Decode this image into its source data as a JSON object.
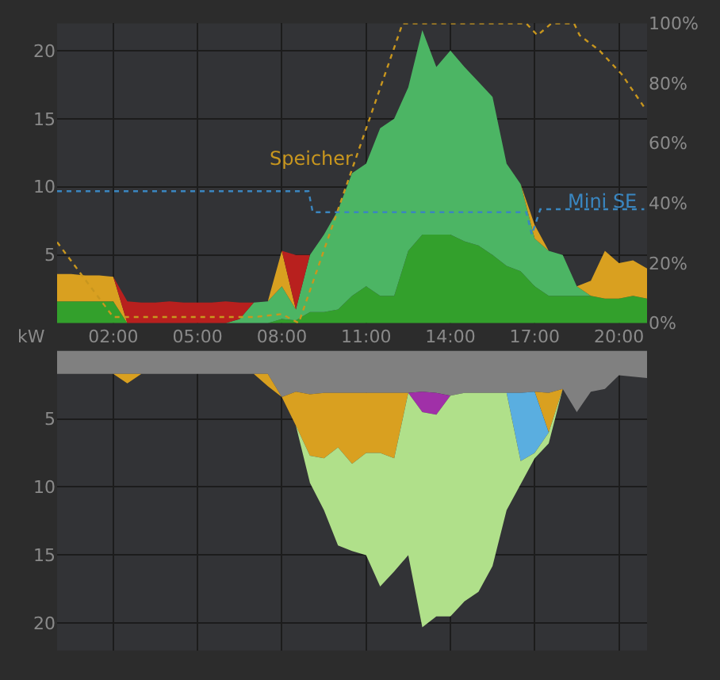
{
  "chart_data": [
    {
      "type": "area",
      "stacked": true,
      "ylabel": "kW",
      "grid": true,
      "x": [
        0,
        0.5,
        1,
        1.5,
        2,
        2.5,
        3,
        3.5,
        4,
        4.5,
        5,
        5.5,
        6,
        6.5,
        7,
        7.5,
        8,
        8.5,
        9,
        9.5,
        10,
        10.5,
        11,
        11.5,
        12,
        12.5,
        13,
        13.5,
        14,
        14.5,
        15,
        15.5,
        16,
        16.5,
        17,
        17.5,
        18,
        18.5,
        19,
        19.5,
        20,
        20.5,
        21
      ],
      "xlim": [
        0,
        21
      ],
      "xticks": [
        {
          "value": 2,
          "label": "02:00"
        },
        {
          "value": 5,
          "label": "05:00"
        },
        {
          "value": 8,
          "label": "08:00"
        },
        {
          "value": 11,
          "label": "11:00"
        },
        {
          "value": 14,
          "label": "14:00"
        },
        {
          "value": 17,
          "label": "17:00"
        },
        {
          "value": 20,
          "label": "20:00"
        }
      ],
      "ylim": [
        0,
        22
      ],
      "yticks": [
        5,
        10,
        15,
        20
      ],
      "y2lim": [
        0,
        100
      ],
      "y2ticks": [
        {
          "value": 0,
          "label": "0%"
        },
        {
          "value": 20,
          "label": "20%"
        },
        {
          "value": 40,
          "label": "40%"
        },
        {
          "value": 60,
          "label": "60%"
        },
        {
          "value": 80,
          "label": "80%"
        },
        {
          "value": 100,
          "label": "100%"
        }
      ],
      "series": [
        {
          "color": "#33a02c",
          "values": [
            1.6,
            1.6,
            1.6,
            1.6,
            1.6,
            0,
            null,
            null,
            null,
            null,
            null,
            null,
            null,
            null,
            null,
            0,
            0.3,
            0.2,
            0.8,
            0.8,
            1,
            2,
            2.7,
            2,
            2,
            5.3,
            6.5,
            6.5,
            6.5,
            6,
            5.7,
            5,
            4.2,
            3.8,
            2.7,
            2,
            2,
            2,
            2,
            1.8,
            1.8,
            2,
            1.8
          ]
        },
        {
          "color": "#4cb564",
          "values": [
            null,
            null,
            null,
            null,
            null,
            null,
            null,
            null,
            null,
            null,
            null,
            null,
            0,
            0.3,
            1.5,
            1.6,
            2.4,
            0.8,
            4.2,
            5.7,
            7.3,
            9,
            9,
            12.3,
            13,
            12,
            15,
            12.3,
            13.5,
            12.8,
            12,
            11.6,
            7.5,
            6.4,
            3.5,
            3.3,
            3,
            0.7,
            0,
            null,
            null,
            null,
            null
          ]
        },
        {
          "color": "#d9a020",
          "values": [
            2,
            2,
            1.9,
            1.9,
            1.8,
            0,
            null,
            null,
            null,
            null,
            null,
            null,
            null,
            null,
            null,
            0,
            2.6,
            0,
            null,
            null,
            null,
            null,
            null,
            null,
            null,
            null,
            null,
            null,
            null,
            null,
            null,
            null,
            null,
            0,
            1,
            0,
            null,
            0,
            1.1,
            3.5,
            2.6,
            2.6,
            2.2
          ]
        },
        {
          "color": "#b8201e",
          "values": [
            null,
            null,
            null,
            null,
            0,
            1.6,
            1.5,
            1.5,
            1.6,
            1.5,
            1.5,
            1.5,
            1.6,
            1.2,
            0,
            null,
            0,
            4,
            0,
            null,
            null,
            null,
            null,
            null,
            null,
            null,
            null,
            null,
            null,
            null,
            null,
            null,
            null,
            null,
            null,
            null,
            null,
            null,
            null,
            null,
            null,
            null,
            null
          ]
        },
        {
          "type": "line",
          "axis": "y2",
          "name": "Speicher",
          "color": "#c8961e",
          "line_style": "dotted",
          "x": [
            0,
            2,
            7,
            8,
            8.6,
            12.3,
            16.7,
            17.1,
            17.6,
            18.4,
            18.6,
            19.3,
            20.1,
            20.9
          ],
          "values": [
            27,
            2,
            2,
            3,
            0,
            100,
            100,
            96,
            100,
            100,
            96,
            91,
            83,
            72
          ]
        },
        {
          "type": "line",
          "axis": "y2",
          "name": "Mini SE",
          "color": "#3a86c0",
          "line_style": "dotted",
          "x": [
            0,
            8.95,
            9.1,
            16.7,
            16.9,
            17.2,
            20.9
          ],
          "values": [
            44,
            44,
            37,
            37,
            29.5,
            38,
            38
          ]
        }
      ]
    },
    {
      "type": "area",
      "stacked": true,
      "grid": true,
      "tick_labels": "y",
      "x": [
        0,
        0.5,
        1,
        1.5,
        2,
        2.5,
        3,
        3.5,
        4,
        4.5,
        5,
        5.5,
        6,
        6.5,
        7,
        7.5,
        8,
        8.5,
        9,
        9.5,
        10,
        10.5,
        11,
        11.5,
        12,
        12.5,
        13,
        13.5,
        14,
        14.5,
        15,
        15.5,
        16,
        16.5,
        17,
        17.5,
        18,
        18.5,
        19,
        19.5,
        20,
        20.5,
        21
      ],
      "xlim": [
        0,
        21
      ],
      "xticks": [
        {
          "value": 2,
          "label": null
        },
        {
          "value": 5,
          "label": null
        },
        {
          "value": 8,
          "label": null
        },
        {
          "value": 11,
          "label": null
        },
        {
          "value": 14,
          "label": null
        },
        {
          "value": 17,
          "label": null
        },
        {
          "value": 20,
          "label": null
        }
      ],
      "ylim": [
        22,
        0
      ],
      "yticks": [
        5,
        10,
        15,
        20
      ],
      "series": [
        {
          "color": "#808080",
          "values": [
            1.7,
            1.7,
            1.7,
            1.7,
            1.7,
            1.7,
            1.7,
            1.7,
            1.7,
            1.7,
            1.7,
            1.7,
            1.7,
            1.7,
            1.7,
            1.7,
            3.4,
            3,
            3.2,
            3.1,
            3.1,
            3.1,
            3.1,
            3.1,
            3.1,
            3.1,
            3,
            3.1,
            3.3,
            3.1,
            3.1,
            3.1,
            3.1,
            3.1,
            3,
            3.1,
            2.8,
            4.5,
            3,
            2.8,
            1.8,
            1.9,
            2
          ]
        },
        {
          "color": "#d9a020",
          "values": [
            null,
            null,
            null,
            null,
            0,
            0.7,
            0,
            null,
            null,
            null,
            null,
            null,
            null,
            null,
            0,
            0.9,
            0,
            2.5,
            4.5,
            4.8,
            4,
            5.2,
            4.4,
            4.4,
            4.8,
            0,
            null,
            null,
            null,
            null,
            null,
            null,
            null,
            null,
            0,
            2.9,
            0,
            null,
            null,
            null,
            null,
            null,
            null
          ]
        },
        {
          "color": "#a030a8",
          "values": [
            null,
            null,
            null,
            null,
            null,
            null,
            null,
            null,
            null,
            null,
            null,
            null,
            null,
            null,
            null,
            null,
            null,
            null,
            null,
            null,
            null,
            null,
            null,
            null,
            null,
            0,
            1.5,
            1.6,
            0,
            null,
            null,
            null,
            null,
            null,
            null,
            null,
            null,
            null,
            null,
            null,
            null,
            null,
            null
          ]
        },
        {
          "color": "#5aaee0",
          "values": [
            null,
            null,
            null,
            null,
            null,
            null,
            null,
            null,
            null,
            null,
            null,
            null,
            null,
            null,
            null,
            null,
            null,
            null,
            null,
            null,
            null,
            null,
            null,
            null,
            null,
            null,
            null,
            null,
            null,
            null,
            null,
            null,
            0,
            5,
            4.5,
            0,
            null,
            null,
            null,
            null,
            null,
            null,
            null
          ]
        },
        {
          "color": "#b0e08a",
          "values": [
            null,
            null,
            null,
            null,
            null,
            null,
            null,
            null,
            null,
            null,
            null,
            null,
            null,
            null,
            null,
            null,
            null,
            0,
            2,
            3.8,
            7.2,
            6.4,
            7.5,
            9.8,
            8.3,
            11.9,
            15.8,
            14.8,
            16.2,
            15.3,
            14.6,
            12.7,
            8.6,
            1.7,
            0.4,
            0.8,
            0,
            null,
            null,
            null,
            null,
            null,
            null
          ]
        }
      ]
    }
  ]
}
